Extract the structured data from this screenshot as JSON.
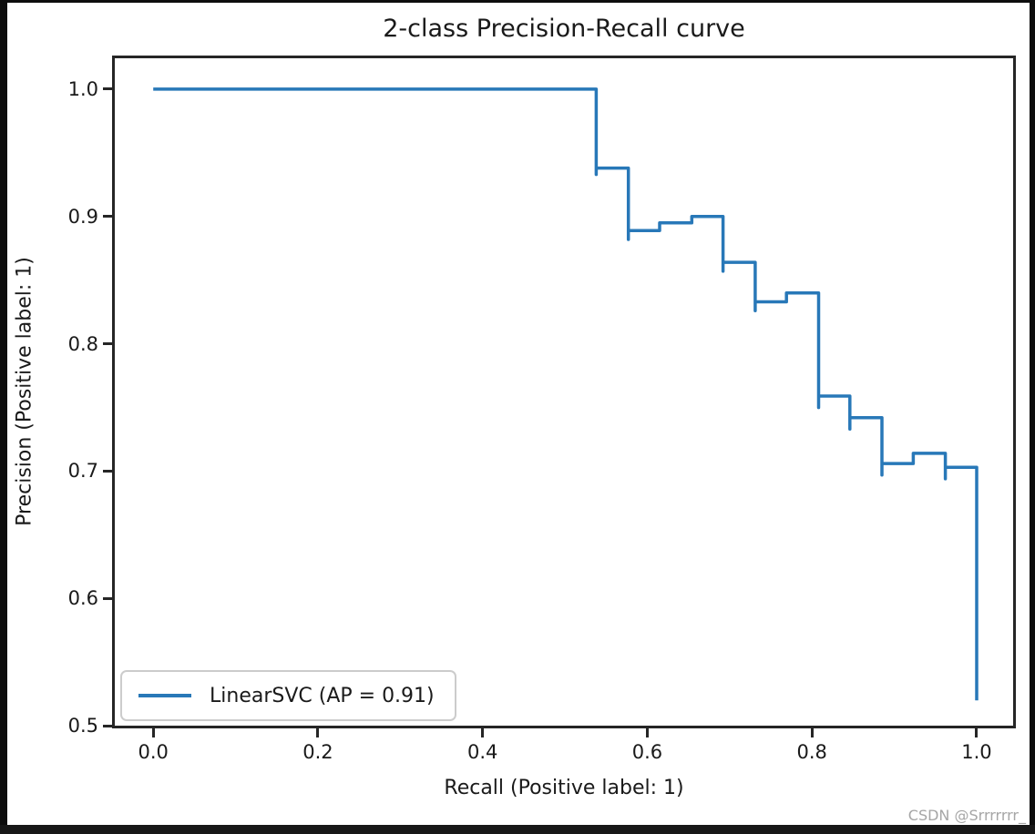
{
  "figure": {
    "watermark": "CSDN @Srrrrrrr_"
  },
  "chart_data": {
    "type": "line",
    "style": "step-post-precision-recall",
    "title": "2-class Precision-Recall curve",
    "xlabel": "Recall (Positive label: 1)",
    "ylabel": "Precision (Positive label: 1)",
    "xlim": [
      -0.05,
      1.0476
    ],
    "ylim": [
      0.498,
      1.0264
    ],
    "x_ticks": [
      0.0,
      0.2,
      0.4,
      0.6,
      0.8,
      1.0
    ],
    "x_tick_labels": [
      "0.0",
      "0.2",
      "0.4",
      "0.6",
      "0.8",
      "1.0"
    ],
    "y_ticks": [
      0.5,
      0.6,
      0.7,
      0.8,
      0.9,
      1.0
    ],
    "y_tick_labels": [
      "0.5",
      "0.6",
      "0.7",
      "0.8",
      "0.9",
      "1.0"
    ],
    "grid": false,
    "legend": {
      "position": "lower-left",
      "label": "LinearSVC (AP = 0.91)"
    },
    "colors": {
      "line": "#2878b8",
      "text": "#1a1a1a",
      "spine": "#262626",
      "legend_border": "#cccccc",
      "watermark": "#a6a6a6"
    },
    "series": [
      {
        "name": "LinearSVC (AP = 0.91)",
        "color": "#2878b8",
        "step_vertices": [
          [
            0.0,
            1.0
          ],
          [
            0.538,
            1.0
          ],
          [
            0.538,
            0.933
          ],
          [
            0.538,
            0.938
          ],
          [
            0.577,
            0.938
          ],
          [
            0.577,
            0.882
          ],
          [
            0.577,
            0.889
          ],
          [
            0.615,
            0.889
          ],
          [
            0.615,
            0.895
          ],
          [
            0.654,
            0.895
          ],
          [
            0.654,
            0.9
          ],
          [
            0.692,
            0.9
          ],
          [
            0.692,
            0.857
          ],
          [
            0.692,
            0.864
          ],
          [
            0.731,
            0.864
          ],
          [
            0.731,
            0.826
          ],
          [
            0.731,
            0.833
          ],
          [
            0.769,
            0.833
          ],
          [
            0.769,
            0.84
          ],
          [
            0.808,
            0.84
          ],
          [
            0.808,
            0.75
          ],
          [
            0.808,
            0.759
          ],
          [
            0.846,
            0.759
          ],
          [
            0.846,
            0.733
          ],
          [
            0.846,
            0.742
          ],
          [
            0.885,
            0.742
          ],
          [
            0.885,
            0.697
          ],
          [
            0.885,
            0.706
          ],
          [
            0.923,
            0.706
          ],
          [
            0.923,
            0.714
          ],
          [
            0.962,
            0.714
          ],
          [
            0.962,
            0.694
          ],
          [
            0.962,
            0.703
          ],
          [
            1.0,
            0.703
          ],
          [
            1.0,
            0.52
          ]
        ]
      }
    ]
  }
}
